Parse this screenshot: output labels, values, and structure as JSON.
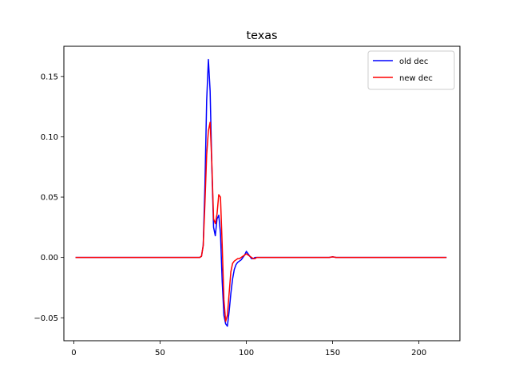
{
  "chart_data": {
    "type": "line",
    "title": "texas",
    "xlabel": "",
    "ylabel": "",
    "xlim": [
      -5.75,
      223.75
    ],
    "ylim": [
      -0.069,
      0.175
    ],
    "xticks": [
      0,
      50,
      100,
      150,
      200
    ],
    "yticks": [
      -0.05,
      0.0,
      0.05,
      0.1,
      0.15
    ],
    "xtick_labels": [
      "0",
      "50",
      "100",
      "150",
      "200"
    ],
    "ytick_labels": [
      "−0.05",
      "0.00",
      "0.05",
      "0.10",
      "0.15"
    ],
    "grid": false,
    "legend_position": "top-right",
    "series": [
      {
        "name": "old dec",
        "color": "#0000ff",
        "x": [
          1,
          10,
          20,
          30,
          40,
          50,
          60,
          70,
          73,
          74,
          75,
          76,
          77,
          78,
          79,
          80,
          81,
          82,
          83,
          84,
          85,
          86,
          87,
          88,
          89,
          90,
          91,
          92,
          93,
          94,
          95,
          96,
          97,
          98,
          99,
          100,
          101,
          102,
          103,
          104,
          105,
          106,
          107,
          110,
          120,
          130,
          140,
          148,
          150,
          152,
          160,
          170,
          180,
          190,
          200,
          210,
          216
        ],
        "y": [
          0,
          0,
          0,
          0,
          0,
          0,
          0,
          0,
          0,
          0.001,
          0.01,
          0.06,
          0.13,
          0.164,
          0.138,
          0.075,
          0.025,
          0.018,
          0.032,
          0.035,
          0.02,
          -0.02,
          -0.048,
          -0.055,
          -0.057,
          -0.045,
          -0.03,
          -0.018,
          -0.01,
          -0.006,
          -0.004,
          -0.003,
          -0.002,
          0.0,
          0.002,
          0.005,
          0.003,
          0.001,
          -0.001,
          -0.001,
          0.0,
          0.0,
          0.0,
          0.0,
          0.0,
          0.0,
          0.0,
          0.0,
          0.0005,
          0.0,
          0.0,
          0.0,
          0.0,
          0.0,
          0.0,
          0.0,
          0.0
        ]
      },
      {
        "name": "new dec",
        "color": "#ff0000",
        "x": [
          1,
          10,
          20,
          30,
          40,
          50,
          60,
          70,
          73,
          74,
          75,
          76,
          77,
          78,
          79,
          80,
          81,
          82,
          83,
          84,
          85,
          86,
          87,
          88,
          89,
          90,
          91,
          92,
          93,
          94,
          95,
          96,
          97,
          98,
          99,
          100,
          101,
          102,
          103,
          104,
          105,
          106,
          107,
          110,
          120,
          130,
          140,
          148,
          150,
          152,
          160,
          170,
          180,
          190,
          200,
          210,
          216
        ],
        "y": [
          0,
          0,
          0,
          0,
          0,
          0,
          0,
          0,
          0,
          0.001,
          0.01,
          0.045,
          0.085,
          0.105,
          0.112,
          0.078,
          0.032,
          0.028,
          0.036,
          0.052,
          0.05,
          0.01,
          -0.035,
          -0.053,
          -0.048,
          -0.03,
          -0.012,
          -0.005,
          -0.003,
          -0.002,
          -0.001,
          -0.001,
          0.0,
          0.001,
          0.002,
          0.003,
          0.002,
          0.001,
          0.0,
          -0.001,
          -0.001,
          0.0,
          0.0,
          0.0,
          0.0,
          0.0,
          0.0,
          0.0,
          0.0005,
          0.0,
          0.0,
          0.0,
          0.0,
          0.0,
          0.0,
          0.0,
          0.0
        ]
      }
    ]
  }
}
